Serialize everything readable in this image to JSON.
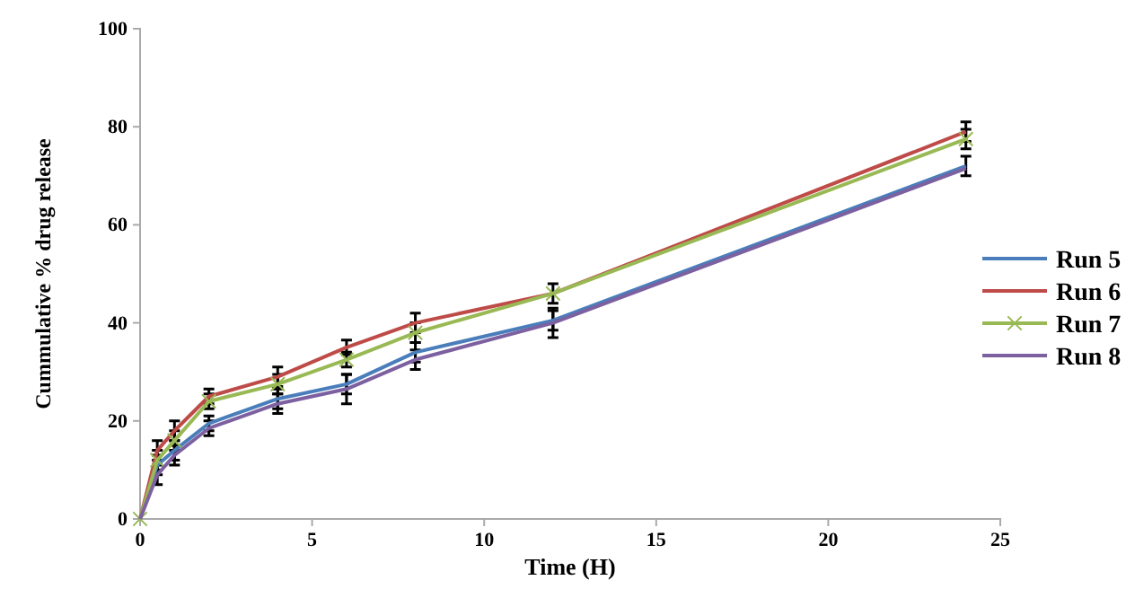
{
  "chart_data": {
    "type": "line",
    "xlabel": "Time (H)",
    "ylabel": "Cummulative % drug release",
    "x": [
      0,
      0.5,
      1,
      2,
      4,
      6,
      8,
      12,
      24
    ],
    "xlim": [
      0,
      25
    ],
    "xticks": [
      0,
      5,
      10,
      15,
      20,
      25
    ],
    "ylim": [
      0,
      100
    ],
    "yticks": [
      0,
      20,
      40,
      60,
      80,
      100
    ],
    "grid": false,
    "legend": "right",
    "series": [
      {
        "name": "Run 5",
        "color": "#4a7ebb",
        "marker": "none",
        "values": [
          0,
          11,
          14,
          19.5,
          24.5,
          27.5,
          34,
          40.5,
          72
        ],
        "errors": [
          null,
          2,
          2,
          1.5,
          2,
          2,
          2,
          2,
          2
        ]
      },
      {
        "name": "Run 6",
        "color": "#be4b48",
        "marker": "none",
        "values": [
          0,
          14,
          18,
          25,
          29,
          35,
          40,
          46,
          79
        ],
        "errors": [
          null,
          2,
          2,
          1.5,
          2,
          1.5,
          2,
          null,
          2
        ]
      },
      {
        "name": "Run 7",
        "color": "#98b954",
        "marker": "cross",
        "values": [
          0,
          12,
          16,
          24,
          27.5,
          32.5,
          38,
          46,
          77.5
        ],
        "errors": [
          null,
          2,
          2,
          1.5,
          2,
          1.5,
          2,
          2,
          2
        ]
      },
      {
        "name": "Run 8",
        "color": "#7d60a0",
        "marker": "none",
        "values": [
          0,
          9,
          13,
          18.5,
          23.5,
          26.5,
          32.5,
          40,
          71.5
        ],
        "errors": [
          null,
          2,
          2,
          1.5,
          2,
          3,
          2,
          3,
          null
        ]
      }
    ]
  }
}
